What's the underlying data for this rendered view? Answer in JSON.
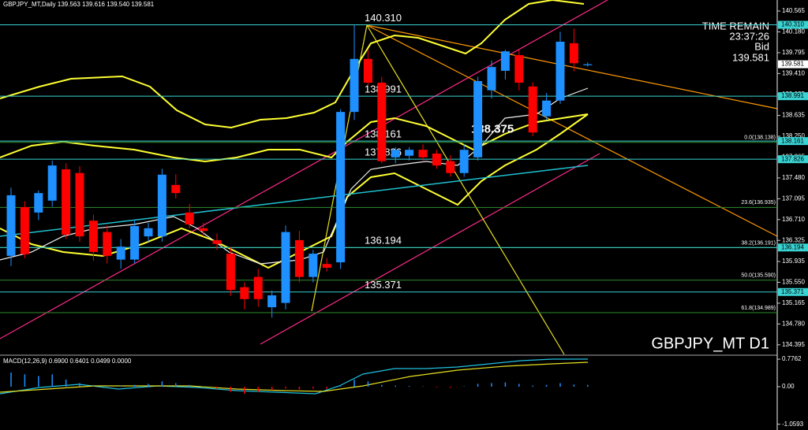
{
  "chart_data": {
    "type": "candlestick",
    "title": "GBPJPY_MT,Daily  139.563 139.616 139.540 139.581",
    "symbol_label": "GBPJPY_MT D1",
    "timer": [
      "TIME REMAIN",
      "23:37:26",
      "Bid"
    ],
    "up_color": "#1e90ff",
    "down_color": "#ff0000",
    "open": [
      136.04,
      136.94,
      136.84,
      137.06,
      137.64,
      137.57,
      136.69,
      136.48,
      135.97,
      135.97,
      136.4,
      136.4,
      137.35,
      136.84,
      136.55,
      136.33,
      136.08,
      135.46,
      135.65,
      135.09,
      135.17,
      136.33,
      135.65,
      135.89,
      135.92,
      138.7,
      139.68,
      139.24,
      137.86,
      137.89,
      138.0,
      137.93,
      137.79,
      137.57,
      137.86,
      139.1,
      139.46,
      139.75,
      139.17,
      138.62,
      138.91,
      139.97,
      139.563
    ],
    "high": [
      137.3,
      137.05,
      137.25,
      137.8,
      137.75,
      137.7,
      136.8,
      136.6,
      136.35,
      136.7,
      136.65,
      137.65,
      137.55,
      137.0,
      136.65,
      136.45,
      136.2,
      135.55,
      135.8,
      135.4,
      136.6,
      136.5,
      136.15,
      136.0,
      138.75,
      140.31,
      139.85,
      139.35,
      138.05,
      138.05,
      138.1,
      138.0,
      137.9,
      138.1,
      139.35,
      139.65,
      139.85,
      139.85,
      139.25,
      139.05,
      140.18,
      140.24,
      139.616
    ],
    "low": [
      135.85,
      136.0,
      136.7,
      136.95,
      136.35,
      136.3,
      135.95,
      135.9,
      135.8,
      135.9,
      136.3,
      136.3,
      137.1,
      136.55,
      136.4,
      136.15,
      135.3,
      135.05,
      135.1,
      134.9,
      135.05,
      135.55,
      135.55,
      135.75,
      135.8,
      138.55,
      139.2,
      137.75,
      137.75,
      137.8,
      137.8,
      137.65,
      137.5,
      137.5,
      137.8,
      138.95,
      139.3,
      139.1,
      138.25,
      138.55,
      138.85,
      139.45,
      139.54
    ],
    "close": [
      137.16,
      136.07,
      137.2,
      137.71,
      136.43,
      136.4,
      136.11,
      136.04,
      136.21,
      136.59,
      136.55,
      137.54,
      137.2,
      136.62,
      136.5,
      136.26,
      135.41,
      135.24,
      135.24,
      135.31,
      136.48,
      135.65,
      136.08,
      135.82,
      138.7,
      139.68,
      139.24,
      137.79,
      138.0,
      138.0,
      137.86,
      137.71,
      137.57,
      138.0,
      139.27,
      139.53,
      139.82,
      139.24,
      138.32,
      138.91,
      139.998,
      139.6,
      139.581
    ],
    "ylim": [
      134.218,
      140.769
    ],
    "yticks": [
      140.565,
      {
        "value": 140.18,
        "label": "140.180"
      },
      139.795,
      {
        "value": 139.41,
        "label": "139.410"
      },
      139.025,
      138.635,
      {
        "value": 138.25,
        "label": "138.250"
      },
      137.865,
      {
        "value": 137.48,
        "label": "137.480"
      },
      137.095,
      {
        "value": 136.71,
        "label": "136.710"
      },
      136.325,
      135.935,
      {
        "value": 135.55,
        "label": "135.550"
      },
      135.165,
      {
        "value": 134.78,
        "label": "134.780"
      },
      134.395
    ],
    "levels": [
      {
        "value": 140.31,
        "label": "140.310"
      },
      138.991,
      138.161,
      137.826,
      136.194,
      135.371
    ],
    "level_color": "#3ad3d3",
    "fib": [
      {
        "value": 138.138,
        "label": "0.0(138.138)"
      },
      {
        "value": 136.935,
        "label": "23.6(136.935)"
      },
      {
        "value": 136.191,
        "label": "38.2(136.191)"
      },
      {
        "value": 135.59,
        "label": "50.0(135.590)"
      },
      {
        "value": 134.989,
        "label": "61.8(134.989)"
      }
    ],
    "fib_color": "#2e8b2e",
    "annotation": 138.375,
    "macd": {
      "title": "MACD(12,26,9) 0.6900 0.6401 0.0499 0.0000",
      "histogram": [
        0.4,
        0.35,
        0.3,
        0.35,
        0.2,
        0.1,
        0.05,
        0.02,
        0.03,
        0.05,
        0.08,
        0.15,
        0.1,
        0.05,
        0.01,
        -0.05,
        -0.15,
        -0.2,
        -0.15,
        -0.1,
        -0.05,
        -0.08,
        -0.05,
        -0.06,
        0.02,
        0.2,
        0.15,
        0.05,
        0.03,
        0.02,
        0.01,
        -0.02,
        -0.03,
        0.01,
        0.08,
        0.1,
        0.12,
        0.08,
        0.03,
        0.05,
        0.1,
        0.06,
        0.05
      ],
      "color": "#1e90ff",
      "ylim": [
        -1.089,
        0.8
      ],
      "yticks": [
        0.7762,
        {
          "value": 0,
          "label": "0.00"
        },
        -1.0593
      ]
    }
  }
}
